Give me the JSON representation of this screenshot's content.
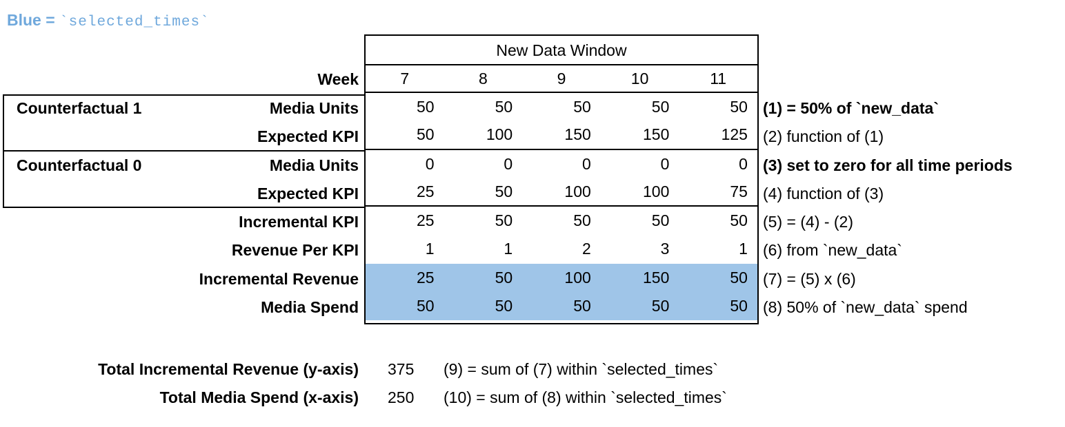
{
  "legend": {
    "bold_part": "Blue =",
    "code_part": "`selected_times`"
  },
  "colors": {
    "legend_blue": "#6FA8DC",
    "highlight_blue": "#9FC5E8",
    "border_black": "#000000",
    "background": "#FFFFFF"
  },
  "table": {
    "window_header": "New Data Window",
    "week_label": "Week",
    "weeks": [
      "7",
      "8",
      "9",
      "10",
      "11"
    ],
    "groups": [
      {
        "label": "Counterfactual 1"
      },
      {
        "label": "Counterfactual 0"
      }
    ],
    "rows": [
      {
        "label": "Media Units",
        "values": [
          "50",
          "50",
          "50",
          "50",
          "50"
        ],
        "note": "(1) = 50% of `new_data`",
        "note_bold": true,
        "highlight": false
      },
      {
        "label": "Expected KPI",
        "values": [
          "50",
          "100",
          "150",
          "150",
          "125"
        ],
        "note": "(2) function of (1)",
        "note_bold": false,
        "highlight": false
      },
      {
        "label": "Media Units",
        "values": [
          "0",
          "0",
          "0",
          "0",
          "0"
        ],
        "note": "(3) set to zero for all time periods",
        "note_bold": true,
        "highlight": false
      },
      {
        "label": "Expected KPI",
        "values": [
          "25",
          "50",
          "100",
          "100",
          "75"
        ],
        "note": "(4) function of (3)",
        "note_bold": false,
        "highlight": false
      },
      {
        "label": "Incremental KPI",
        "values": [
          "25",
          "50",
          "50",
          "50",
          "50"
        ],
        "note": "(5) = (4) - (2)",
        "note_bold": false,
        "highlight": false
      },
      {
        "label": "Revenue Per KPI",
        "values": [
          "1",
          "1",
          "2",
          "3",
          "1"
        ],
        "note": "(6) from `new_data`",
        "note_bold": false,
        "highlight": false
      },
      {
        "label": "Incremental Revenue",
        "values": [
          "25",
          "50",
          "100",
          "150",
          "50"
        ],
        "note": "(7) = (5) x (6)",
        "note_bold": false,
        "highlight": true
      },
      {
        "label": "Media Spend",
        "values": [
          "50",
          "50",
          "50",
          "50",
          "50"
        ],
        "note": "(8) 50% of `new_data` spend",
        "note_bold": false,
        "highlight": true
      }
    ]
  },
  "summary": {
    "rows": [
      {
        "label": "Total Incremental Revenue (y-axis)",
        "value": "375",
        "note": "(9) = sum of (7) within `selected_times`"
      },
      {
        "label": "Total Media Spend (x-axis)",
        "value": "250",
        "note": "(10) = sum of (8) within `selected_times`"
      }
    ]
  },
  "chart_data": {
    "type": "table",
    "title": "New Data Window",
    "categories": [
      7,
      8,
      9,
      10,
      11
    ],
    "series": [
      {
        "name": "Counterfactual 1 Media Units",
        "values": [
          50,
          50,
          50,
          50,
          50
        ]
      },
      {
        "name": "Counterfactual 1 Expected KPI",
        "values": [
          50,
          100,
          150,
          150,
          125
        ]
      },
      {
        "name": "Counterfactual 0 Media Units",
        "values": [
          0,
          0,
          0,
          0,
          0
        ]
      },
      {
        "name": "Counterfactual 0 Expected KPI",
        "values": [
          25,
          50,
          100,
          100,
          75
        ]
      },
      {
        "name": "Incremental KPI",
        "values": [
          25,
          50,
          50,
          50,
          50
        ]
      },
      {
        "name": "Revenue Per KPI",
        "values": [
          1,
          1,
          2,
          3,
          1
        ]
      },
      {
        "name": "Incremental Revenue",
        "values": [
          25,
          50,
          100,
          150,
          50
        ]
      },
      {
        "name": "Media Spend",
        "values": [
          50,
          50,
          50,
          50,
          50
        ]
      }
    ],
    "highlighted_rows": [
      "Incremental Revenue",
      "Media Spend"
    ],
    "totals": {
      "total_incremental_revenue_y_axis": 375,
      "total_media_spend_x_axis": 250
    }
  }
}
